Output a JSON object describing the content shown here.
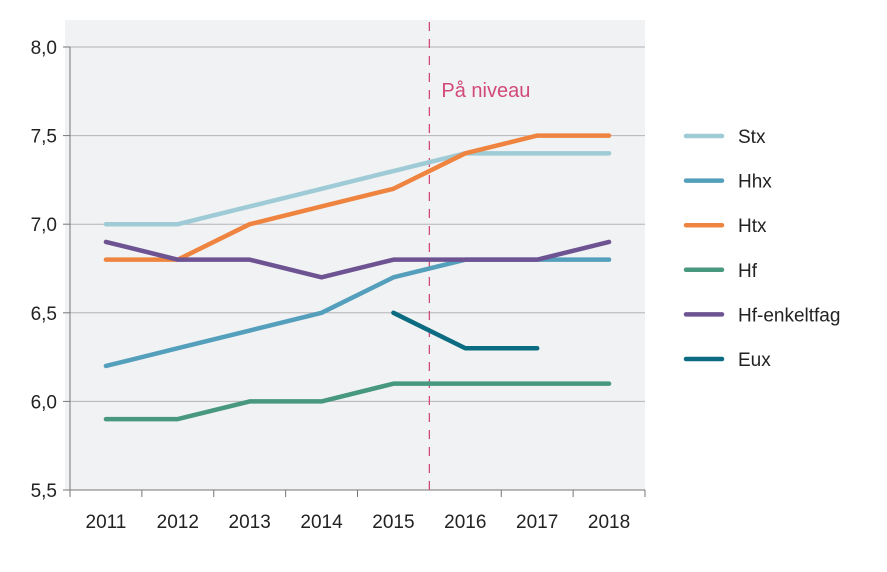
{
  "chart_data": {
    "type": "line",
    "title": "",
    "xlabel": "",
    "ylabel": "",
    "categories": [
      "2011",
      "2012",
      "2013",
      "2014",
      "2015",
      "2016",
      "2017",
      "2018"
    ],
    "ylim": [
      5.5,
      8.0
    ],
    "yticks": [
      "5,5",
      "6,0",
      "6,5",
      "7,0",
      "7,5",
      "8,0"
    ],
    "ytick_values": [
      5.5,
      6.0,
      6.5,
      7.0,
      7.5,
      8.0
    ],
    "grid": "horizontal",
    "legend_placement": "right",
    "series": [
      {
        "name": "Stx",
        "color": "#9ecbd6",
        "values": [
          7.0,
          7.0,
          7.1,
          7.2,
          7.3,
          7.4,
          7.4,
          7.4
        ]
      },
      {
        "name": "Hhx",
        "color": "#549fbb",
        "values": [
          6.2,
          6.3,
          6.4,
          6.5,
          6.7,
          6.8,
          6.8,
          6.8
        ]
      },
      {
        "name": "Htx",
        "color": "#ee843f",
        "values": [
          6.8,
          6.8,
          7.0,
          7.1,
          7.2,
          7.4,
          7.5,
          7.5
        ]
      },
      {
        "name": "Hf",
        "color": "#47987f",
        "values": [
          5.9,
          5.9,
          6.0,
          6.0,
          6.1,
          6.1,
          6.1,
          6.1
        ]
      },
      {
        "name": "Hf-enkeltfag",
        "color": "#6e5393",
        "values": [
          6.9,
          6.8,
          6.8,
          6.7,
          6.8,
          6.8,
          6.8,
          6.9
        ]
      },
      {
        "name": "Eux",
        "color": "#0b6b80",
        "values": [
          null,
          null,
          null,
          null,
          6.5,
          6.3,
          6.3,
          null
        ]
      }
    ],
    "annotation": {
      "text": "På niveau",
      "color": "#d24a78",
      "between": [
        "2015",
        "2016"
      ]
    }
  }
}
